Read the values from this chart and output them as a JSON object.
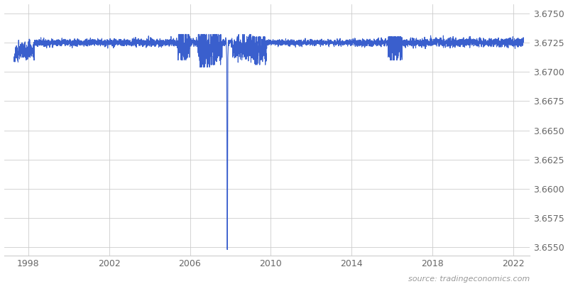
{
  "title": "",
  "source_text": "source: tradingeconomics.com",
  "line_color": "#3a5fcd",
  "background_color": "#ffffff",
  "grid_color": "#cccccc",
  "ylim": [
    3.6543,
    3.6758
  ],
  "xlim_start": 1996.8,
  "xlim_end": 2022.8,
  "yticks": [
    3.655,
    3.6575,
    3.66,
    3.6625,
    3.665,
    3.6675,
    3.67,
    3.6725,
    3.675
  ],
  "xticks": [
    1998,
    2002,
    2006,
    2010,
    2014,
    2018,
    2022
  ],
  "base_value": 3.6725,
  "spike_year": 2007.85,
  "spike_value": 3.6548,
  "line_width": 0.8,
  "figsize": [
    8.0,
    4.0
  ],
  "dpi": 100
}
